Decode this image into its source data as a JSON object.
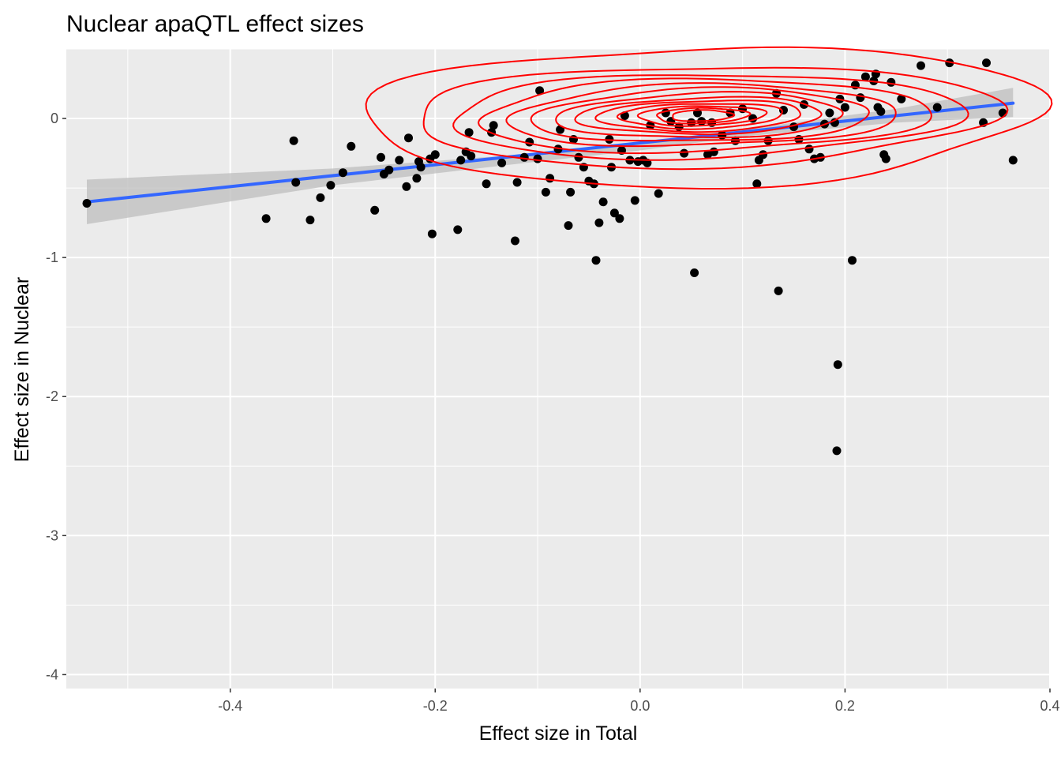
{
  "chart_data": {
    "type": "scatter",
    "title": "Nuclear apaQTL effect sizes",
    "xlabel": "Effect size in Total",
    "ylabel": "Effect size in Nuclear",
    "xlim": [
      -0.56,
      0.4
    ],
    "ylim": [
      -4.1,
      0.5
    ],
    "x_ticks": [
      -0.4,
      -0.2,
      0.0,
      0.2,
      0.4
    ],
    "x_tick_labels": [
      "-0.4",
      "-0.2",
      "0.0",
      "0.2",
      "0.4"
    ],
    "y_ticks": [
      -4,
      -3,
      -2,
      -1,
      0
    ],
    "y_tick_labels": [
      "-4",
      "-3",
      "-2",
      "-1",
      "0"
    ],
    "grid": true,
    "colors": {
      "panel": "#ebebeb",
      "grid": "#ffffff",
      "points": "#000000",
      "fit_line": "#3366ff",
      "ribbon": "#bdbdbd",
      "contour": "#ff0000"
    },
    "series": [
      {
        "name": "points",
        "points": [
          [
            -0.54,
            -0.61
          ],
          [
            -0.365,
            -0.72
          ],
          [
            -0.338,
            -0.16
          ],
          [
            -0.336,
            -0.46
          ],
          [
            -0.322,
            -0.73
          ],
          [
            -0.312,
            -0.57
          ],
          [
            -0.302,
            -0.48
          ],
          [
            -0.29,
            -0.39
          ],
          [
            -0.282,
            -0.2
          ],
          [
            -0.259,
            -0.66
          ],
          [
            -0.253,
            -0.28
          ],
          [
            -0.25,
            -0.4
          ],
          [
            -0.245,
            -0.37
          ],
          [
            -0.235,
            -0.3
          ],
          [
            -0.228,
            -0.49
          ],
          [
            -0.226,
            -0.14
          ],
          [
            -0.218,
            -0.43
          ],
          [
            -0.216,
            -0.31
          ],
          [
            -0.214,
            -0.35
          ],
          [
            -0.205,
            -0.29
          ],
          [
            -0.203,
            -0.83
          ],
          [
            -0.2,
            -0.26
          ],
          [
            -0.178,
            -0.8
          ],
          [
            -0.175,
            -0.3
          ],
          [
            -0.17,
            -0.24
          ],
          [
            -0.167,
            -0.1
          ],
          [
            -0.165,
            -0.27
          ],
          [
            -0.15,
            -0.47
          ],
          [
            -0.145,
            -0.1
          ],
          [
            -0.143,
            -0.05
          ],
          [
            -0.135,
            -0.32
          ],
          [
            -0.122,
            -0.88
          ],
          [
            -0.12,
            -0.46
          ],
          [
            -0.113,
            -0.28
          ],
          [
            -0.108,
            -0.17
          ],
          [
            -0.1,
            -0.29
          ],
          [
            -0.098,
            0.2
          ],
          [
            -0.092,
            -0.53
          ],
          [
            -0.088,
            -0.43
          ],
          [
            -0.08,
            -0.22
          ],
          [
            -0.078,
            -0.08
          ],
          [
            -0.07,
            -0.77
          ],
          [
            -0.068,
            -0.53
          ],
          [
            -0.065,
            -0.15
          ],
          [
            -0.06,
            -0.28
          ],
          [
            -0.055,
            -0.35
          ],
          [
            -0.05,
            -0.45
          ],
          [
            -0.045,
            -0.47
          ],
          [
            -0.043,
            -1.02
          ],
          [
            -0.04,
            -0.75
          ],
          [
            -0.036,
            -0.6
          ],
          [
            -0.03,
            -0.15
          ],
          [
            -0.028,
            -0.35
          ],
          [
            -0.025,
            -0.68
          ],
          [
            -0.02,
            -0.72
          ],
          [
            -0.018,
            -0.23
          ],
          [
            -0.015,
            0.02
          ],
          [
            -0.01,
            -0.3
          ],
          [
            -0.005,
            -0.59
          ],
          [
            -0.002,
            -0.31
          ],
          [
            0.003,
            -0.3
          ],
          [
            0.007,
            -0.32
          ],
          [
            0.01,
            -0.05
          ],
          [
            0.018,
            -0.54
          ],
          [
            0.025,
            0.04
          ],
          [
            0.03,
            -0.02
          ],
          [
            0.038,
            -0.06
          ],
          [
            0.043,
            -0.25
          ],
          [
            0.05,
            -0.03
          ],
          [
            0.053,
            -1.11
          ],
          [
            0.056,
            0.04
          ],
          [
            0.06,
            -0.02
          ],
          [
            0.066,
            -0.26
          ],
          [
            0.07,
            -0.03
          ],
          [
            0.072,
            -0.24
          ],
          [
            0.08,
            -0.12
          ],
          [
            0.088,
            0.04
          ],
          [
            0.093,
            -0.16
          ],
          [
            0.1,
            0.07
          ],
          [
            0.11,
            0.0
          ],
          [
            0.114,
            -0.47
          ],
          [
            0.116,
            -0.3
          ],
          [
            0.12,
            -0.26
          ],
          [
            0.125,
            -0.16
          ],
          [
            0.133,
            0.18
          ],
          [
            0.135,
            -1.24
          ],
          [
            0.14,
            0.06
          ],
          [
            0.15,
            -0.06
          ],
          [
            0.155,
            -0.15
          ],
          [
            0.16,
            0.1
          ],
          [
            0.165,
            -0.22
          ],
          [
            0.17,
            -0.29
          ],
          [
            0.176,
            -0.28
          ],
          [
            0.18,
            -0.04
          ],
          [
            0.185,
            0.04
          ],
          [
            0.19,
            -0.03
          ],
          [
            0.192,
            -2.39
          ],
          [
            0.193,
            -1.77
          ],
          [
            0.195,
            0.14
          ],
          [
            0.2,
            0.08
          ],
          [
            0.207,
            -1.02
          ],
          [
            0.21,
            0.24
          ],
          [
            0.215,
            0.15
          ],
          [
            0.22,
            0.3
          ],
          [
            0.228,
            0.27
          ],
          [
            0.23,
            0.32
          ],
          [
            0.232,
            0.08
          ],
          [
            0.235,
            0.05
          ],
          [
            0.238,
            -0.26
          ],
          [
            0.24,
            -0.29
          ],
          [
            0.245,
            0.26
          ],
          [
            0.255,
            0.14
          ],
          [
            0.274,
            0.38
          ],
          [
            0.29,
            0.08
          ],
          [
            0.302,
            0.4
          ],
          [
            0.335,
            -0.03
          ],
          [
            0.338,
            0.4
          ],
          [
            0.354,
            0.04
          ],
          [
            0.364,
            -0.3
          ]
        ]
      },
      {
        "name": "linear fit",
        "kind": "line",
        "x": [
          -0.54,
          0.364
        ],
        "y": [
          -0.6,
          0.11
        ],
        "band": {
          "x": [
            -0.54,
            -0.3,
            -0.1,
            0.0,
            0.1,
            0.25,
            0.364
          ],
          "lower": [
            -0.76,
            -0.48,
            -0.31,
            -0.23,
            -0.13,
            -0.03,
            0.01
          ],
          "upper": [
            -0.44,
            -0.36,
            -0.25,
            -0.17,
            -0.08,
            0.07,
            0.22
          ]
        }
      },
      {
        "name": "2d density contours",
        "kind": "contours",
        "center": [
          0.06,
          0.02
        ],
        "radii_x": [
          0.33,
          0.285,
          0.25,
          0.22,
          0.19,
          0.165,
          0.14,
          0.12,
          0.1,
          0.08,
          0.062,
          0.045,
          0.03
        ],
        "radii_y": [
          0.5,
          0.36,
          0.3,
          0.26,
          0.22,
          0.19,
          0.16,
          0.13,
          0.11,
          0.09,
          0.07,
          0.055,
          0.04
        ]
      }
    ]
  }
}
